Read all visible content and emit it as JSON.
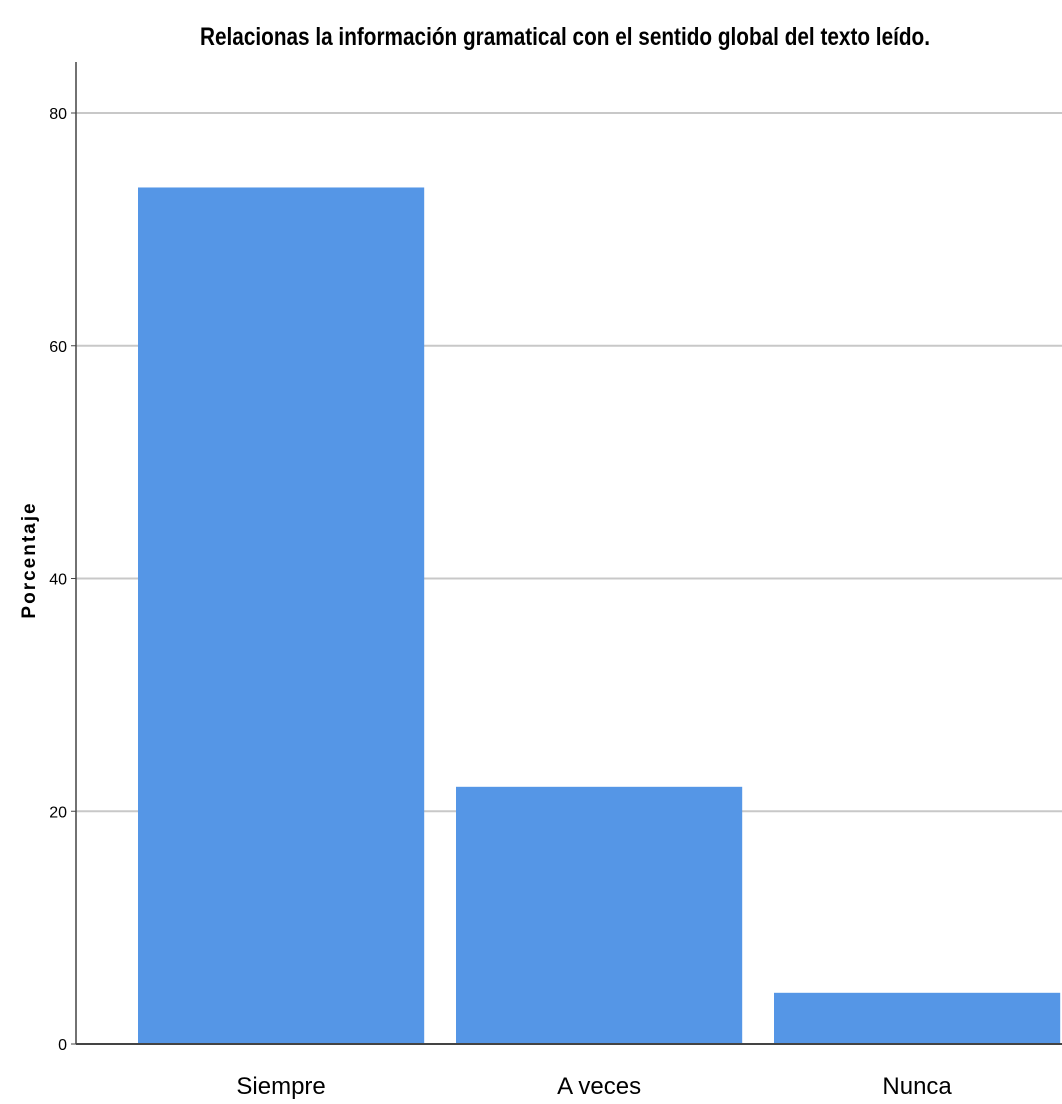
{
  "chart_data": {
    "type": "bar",
    "title": "Relacionas la información gramatical con el sentido global del texto leído.",
    "xlabel": "",
    "ylabel": "Porcentaje",
    "categories": [
      "Siempre",
      "A veces",
      "Nunca"
    ],
    "values": [
      73.6,
      22.1,
      4.4
    ],
    "ylim": [
      0,
      80
    ],
    "yticks": [
      0,
      20,
      40,
      60,
      80
    ],
    "grid": true,
    "legend": "none",
    "bar_color": "#5596e6",
    "grid_color": "#c8c8c8",
    "axis_color": "#444444"
  }
}
